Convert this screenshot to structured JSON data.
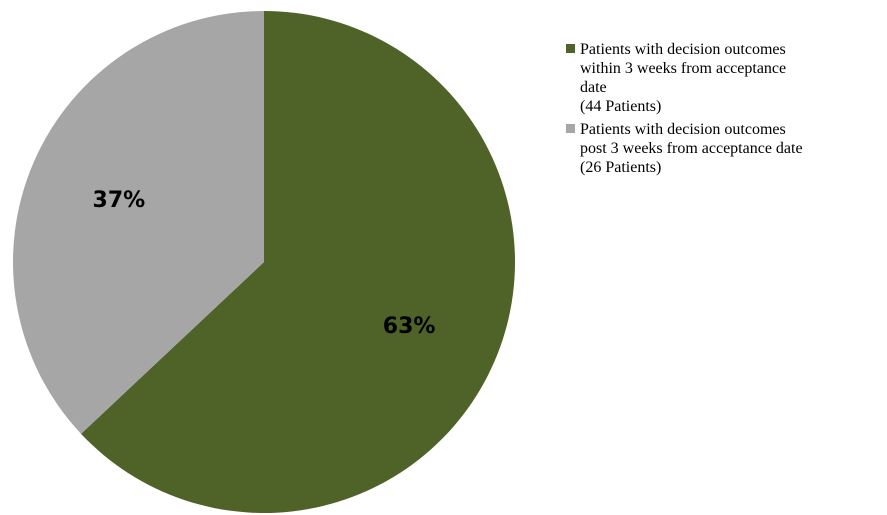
{
  "chart_data": {
    "type": "pie",
    "title": "",
    "start_angle": "12 o'clock",
    "direction": "clockwise",
    "legend_position": "right",
    "slices": [
      {
        "label_lines": [
          "Patients with decision outcomes",
          "within 3 weeks from acceptance",
          "date",
          "(44 Patients)"
        ],
        "value": 63,
        "data_label": "63%",
        "color": "#4f6228"
      },
      {
        "label_lines": [
          "Patients with decision outcomes",
          "post 3 weeks from acceptance date",
          "(26 Patients)"
        ],
        "value": 37,
        "data_label": "37%",
        "color": "#a6a6a6"
      }
    ]
  }
}
